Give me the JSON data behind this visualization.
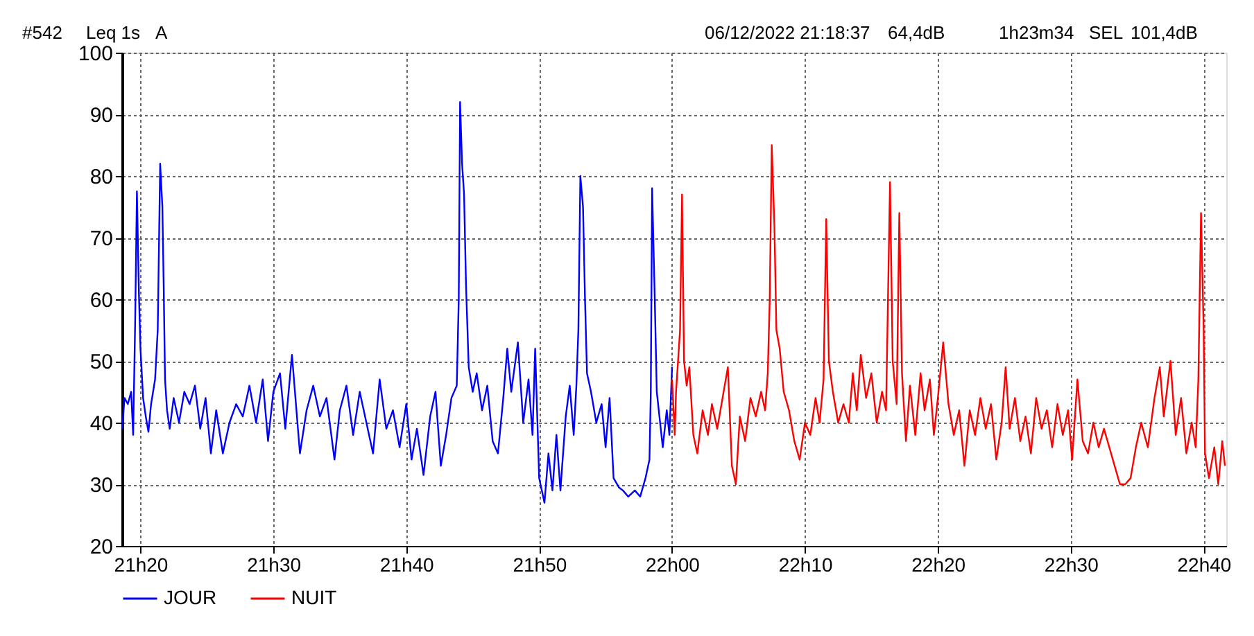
{
  "chart_data": {
    "type": "line",
    "annotations": [
      "#542",
      "Leq 1s",
      "A",
      "06/12/2022 21:18:37",
      "64,4dB",
      "1h23m34",
      "SEL",
      "101,4dB"
    ],
    "xlim": [
      "2022-12-06T21:18:37",
      "2022-12-06T22:41:42"
    ],
    "ylim": [
      20,
      100
    ],
    "xticks": [
      {
        "value": "2022-12-06T21:20",
        "label": "21h20"
      },
      {
        "value": "2022-12-06T21:30",
        "label": "21h30"
      },
      {
        "value": "2022-12-06T21:40",
        "label": "21h40"
      },
      {
        "value": "2022-12-06T21:50",
        "label": "21h50"
      },
      {
        "value": "2022-12-06T22:00",
        "label": "22h00"
      },
      {
        "value": "2022-12-06T22:10",
        "label": "22h10"
      },
      {
        "value": "2022-12-06T22:20",
        "label": "22h20"
      },
      {
        "value": "2022-12-06T22:30",
        "label": "22h30"
      },
      {
        "value": "2022-12-06T22:40",
        "label": "22h40"
      }
    ],
    "yticks": [
      20,
      30,
      40,
      50,
      60,
      70,
      80,
      90,
      100
    ],
    "grid": true,
    "legend": "bottom",
    "marker": "none",
    "line_style": "solid",
    "series": [
      {
        "name": "JOUR",
        "color": "#0000ff",
        "x": [
          "2022-12-06T21:18:38",
          "2022-12-06T21:18:48",
          "2022-12-06T21:19:03",
          "2022-12-06T21:19:18",
          "2022-12-06T21:19:27",
          "2022-12-06T21:19:36",
          "2022-12-06T21:19:44",
          "2022-12-06T21:19:53",
          "2022-12-06T21:20:00",
          "2022-12-06T21:20:12",
          "2022-12-06T21:20:24",
          "2022-12-06T21:20:36",
          "2022-12-06T21:20:48",
          "2022-12-06T21:21:06",
          "2022-12-06T21:21:18",
          "2022-12-06T21:21:29",
          "2022-12-06T21:21:39",
          "2022-12-06T21:21:45",
          "2022-12-06T21:21:51",
          "2022-12-06T21:22:00",
          "2022-12-06T21:22:12",
          "2022-12-06T21:22:30",
          "2022-12-06T21:22:54",
          "2022-12-06T21:23:18",
          "2022-12-06T21:23:42",
          "2022-12-06T21:24:06",
          "2022-12-06T21:24:30",
          "2022-12-06T21:24:54",
          "2022-12-06T21:25:18",
          "2022-12-06T21:25:42",
          "2022-12-06T21:26:12",
          "2022-12-06T21:26:42",
          "2022-12-06T21:27:12",
          "2022-12-06T21:27:42",
          "2022-12-06T21:28:12",
          "2022-12-06T21:28:42",
          "2022-12-06T21:29:12",
          "2022-12-06T21:29:36",
          "2022-12-06T21:30:00",
          "2022-12-06T21:30:30",
          "2022-12-06T21:30:54",
          "2022-12-06T21:31:24",
          "2022-12-06T21:31:42",
          "2022-12-06T21:32:00",
          "2022-12-06T21:32:30",
          "2022-12-06T21:33:00",
          "2022-12-06T21:33:30",
          "2022-12-06T21:34:00",
          "2022-12-06T21:34:36",
          "2022-12-06T21:35:00",
          "2022-12-06T21:35:30",
          "2022-12-06T21:36:00",
          "2022-12-06T21:36:30",
          "2022-12-06T21:37:00",
          "2022-12-06T21:37:30",
          "2022-12-06T21:38:00",
          "2022-12-06T21:38:30",
          "2022-12-06T21:39:00",
          "2022-12-06T21:39:30",
          "2022-12-06T21:40:00",
          "2022-12-06T21:40:24",
          "2022-12-06T21:40:48",
          "2022-12-06T21:41:18",
          "2022-12-06T21:41:48",
          "2022-12-06T21:42:12",
          "2022-12-06T21:42:36",
          "2022-12-06T21:43:00",
          "2022-12-06T21:43:24",
          "2022-12-06T21:43:48",
          "2022-12-06T21:43:57",
          "2022-12-06T21:44:03",
          "2022-12-06T21:44:12",
          "2022-12-06T21:44:21",
          "2022-12-06T21:44:30",
          "2022-12-06T21:44:42",
          "2022-12-06T21:45:00",
          "2022-12-06T21:45:18",
          "2022-12-06T21:45:42",
          "2022-12-06T21:46:06",
          "2022-12-06T21:46:30",
          "2022-12-06T21:46:54",
          "2022-12-06T21:47:18",
          "2022-12-06T21:47:36",
          "2022-12-06T21:47:54",
          "2022-12-06T21:48:24",
          "2022-12-06T21:48:48",
          "2022-12-06T21:49:12",
          "2022-12-06T21:49:30",
          "2022-12-06T21:49:42",
          "2022-12-06T21:50:00",
          "2022-12-06T21:50:24",
          "2022-12-06T21:50:42",
          "2022-12-06T21:51:00",
          "2022-12-06T21:51:18",
          "2022-12-06T21:51:36",
          "2022-12-06T21:52:00",
          "2022-12-06T21:52:18",
          "2022-12-06T21:52:36",
          "2022-12-06T21:52:48",
          "2022-12-06T21:52:57",
          "2022-12-06T21:53:06",
          "2022-12-06T21:53:18",
          "2022-12-06T21:53:27",
          "2022-12-06T21:53:36",
          "2022-12-06T21:53:54",
          "2022-12-06T21:54:18",
          "2022-12-06T21:54:42",
          "2022-12-06T21:55:00",
          "2022-12-06T21:55:18",
          "2022-12-06T21:55:36",
          "2022-12-06T21:56:00",
          "2022-12-06T21:56:18",
          "2022-12-06T21:56:42",
          "2022-12-06T21:57:12",
          "2022-12-06T21:57:36",
          "2022-12-06T21:58:00",
          "2022-12-06T21:58:18",
          "2022-12-06T21:58:24",
          "2022-12-06T21:58:30",
          "2022-12-06T21:58:42",
          "2022-12-06T21:58:51",
          "2022-12-06T21:59:06",
          "2022-12-06T21:59:18",
          "2022-12-06T21:59:36",
          "2022-12-06T21:59:48",
          "2022-12-06T22:00:00"
        ],
        "values": [
          39,
          44,
          43,
          45,
          38,
          56,
          77.5,
          61,
          52,
          44,
          41,
          38.5,
          43,
          47,
          55,
          82,
          75,
          62,
          47,
          42,
          39,
          44,
          40,
          45,
          43,
          46,
          39,
          44,
          35,
          42,
          35,
          40,
          43,
          41,
          46,
          40,
          47,
          37,
          45,
          48,
          39,
          51,
          43,
          35,
          42,
          46,
          41,
          44,
          34,
          42,
          46,
          38,
          45,
          40,
          35,
          47,
          39,
          42,
          36,
          43,
          34,
          39,
          31.5,
          41,
          45,
          33,
          38,
          44,
          46,
          60,
          92,
          82,
          77,
          62,
          49,
          45,
          48,
          42,
          46,
          37,
          35,
          44,
          52,
          45,
          53,
          40,
          47,
          38,
          52,
          31,
          27,
          35,
          29,
          38,
          29,
          41,
          46,
          38,
          46,
          55,
          80,
          75,
          60,
          48,
          45,
          40,
          43,
          36,
          44,
          31,
          29.5,
          29,
          28,
          29,
          28,
          31,
          34,
          45,
          78,
          60,
          45,
          40,
          36,
          42,
          38,
          49
        ]
      },
      {
        "name": "NUIT",
        "color": "#ff0000",
        "x": [
          "2022-12-06T22:00:00",
          "2022-12-06T22:00:12",
          "2022-12-06T22:00:18",
          "2022-12-06T22:00:36",
          "2022-12-06T22:00:45",
          "2022-12-06T22:00:54",
          "2022-12-06T22:01:06",
          "2022-12-06T22:01:18",
          "2022-12-06T22:01:36",
          "2022-12-06T22:01:54",
          "2022-12-06T22:02:18",
          "2022-12-06T22:02:42",
          "2022-12-06T22:03:00",
          "2022-12-06T22:03:24",
          "2022-12-06T22:03:48",
          "2022-12-06T22:04:12",
          "2022-12-06T22:04:30",
          "2022-12-06T22:04:48",
          "2022-12-06T22:05:06",
          "2022-12-06T22:05:30",
          "2022-12-06T22:05:54",
          "2022-12-06T22:06:18",
          "2022-12-06T22:06:42",
          "2022-12-06T22:07:00",
          "2022-12-06T22:07:12",
          "2022-12-06T22:07:21",
          "2022-12-06T22:07:30",
          "2022-12-06T22:07:42",
          "2022-12-06T22:07:51",
          "2022-12-06T22:08:06",
          "2022-12-06T22:08:24",
          "2022-12-06T22:08:48",
          "2022-12-06T22:09:12",
          "2022-12-06T22:09:36",
          "2022-12-06T22:10:00",
          "2022-12-06T22:10:24",
          "2022-12-06T22:10:48",
          "2022-12-06T22:11:06",
          "2022-12-06T22:11:24",
          "2022-12-06T22:11:36",
          "2022-12-06T22:11:48",
          "2022-12-06T22:12:06",
          "2022-12-06T22:12:30",
          "2022-12-06T22:12:54",
          "2022-12-06T22:13:18",
          "2022-12-06T22:13:36",
          "2022-12-06T22:13:54",
          "2022-12-06T22:14:12",
          "2022-12-06T22:14:36",
          "2022-12-06T22:15:00",
          "2022-12-06T22:15:24",
          "2022-12-06T22:15:48",
          "2022-12-06T22:16:06",
          "2022-12-06T22:16:24",
          "2022-12-06T22:16:36",
          "2022-12-06T22:16:54",
          "2022-12-06T22:17:06",
          "2022-12-06T22:17:18",
          "2022-12-06T22:17:36",
          "2022-12-06T22:17:54",
          "2022-12-06T22:18:18",
          "2022-12-06T22:18:42",
          "2022-12-06T22:19:00",
          "2022-12-06T22:19:24",
          "2022-12-06T22:19:42",
          "2022-12-06T22:20:00",
          "2022-12-06T22:20:24",
          "2022-12-06T22:20:48",
          "2022-12-06T22:21:12",
          "2022-12-06T22:21:36",
          "2022-12-06T22:22:00",
          "2022-12-06T22:22:24",
          "2022-12-06T22:22:48",
          "2022-12-06T22:23:12",
          "2022-12-06T22:23:36",
          "2022-12-06T22:24:00",
          "2022-12-06T22:24:24",
          "2022-12-06T22:24:48",
          "2022-12-06T22:25:06",
          "2022-12-06T22:25:24",
          "2022-12-06T22:25:48",
          "2022-12-06T22:26:12",
          "2022-12-06T22:26:36",
          "2022-12-06T22:27:00",
          "2022-12-06T22:27:24",
          "2022-12-06T22:27:48",
          "2022-12-06T22:28:12",
          "2022-12-06T22:28:36",
          "2022-12-06T22:29:00",
          "2022-12-06T22:29:24",
          "2022-12-06T22:29:48",
          "2022-12-06T22:30:06",
          "2022-12-06T22:30:30",
          "2022-12-06T22:30:54",
          "2022-12-06T22:31:18",
          "2022-12-06T22:31:42",
          "2022-12-06T22:32:06",
          "2022-12-06T22:32:30",
          "2022-12-06T22:32:54",
          "2022-12-06T22:33:18",
          "2022-12-06T22:33:42",
          "2022-12-06T22:34:06",
          "2022-12-06T22:34:30",
          "2022-12-06T22:34:54",
          "2022-12-06T22:35:18",
          "2022-12-06T22:35:48",
          "2022-12-06T22:36:18",
          "2022-12-06T22:36:42",
          "2022-12-06T22:37:00",
          "2022-12-06T22:37:30",
          "2022-12-06T22:37:54",
          "2022-12-06T22:38:18",
          "2022-12-06T22:38:42",
          "2022-12-06T22:39:06",
          "2022-12-06T22:39:24",
          "2022-12-06T22:39:36",
          "2022-12-06T22:39:48",
          "2022-12-06T22:40:00",
          "2022-12-06T22:40:06",
          "2022-12-06T22:40:24",
          "2022-12-06T22:40:48",
          "2022-12-06T22:41:06",
          "2022-12-06T22:41:24",
          "2022-12-06T22:41:36"
        ],
        "values": [
          47,
          38,
          45,
          55,
          77,
          50,
          46,
          49,
          38,
          35,
          42,
          38,
          43,
          39,
          44,
          49,
          33,
          30,
          41,
          37,
          44,
          41,
          45,
          42,
          48,
          60,
          85,
          72,
          55,
          52,
          45,
          42,
          37,
          34,
          40,
          38,
          44,
          40,
          47,
          73,
          50,
          45,
          40,
          43,
          40,
          48,
          42,
          51,
          44,
          48,
          40,
          45,
          42,
          79,
          50,
          43,
          74,
          48,
          37,
          46,
          38,
          48,
          42,
          47,
          38,
          44,
          53,
          43,
          38,
          42,
          33,
          42,
          38,
          44,
          39,
          43,
          34,
          40,
          49,
          39,
          44,
          37,
          41,
          35,
          44,
          39,
          42,
          36,
          43,
          38,
          42,
          34,
          47,
          37,
          35,
          40,
          36,
          39,
          36,
          33,
          30,
          30,
          31,
          36,
          40,
          36,
          44,
          49,
          41,
          50,
          38,
          44,
          35,
          40,
          36,
          47,
          74,
          55,
          35,
          31,
          36,
          30,
          37,
          33
        ]
      }
    ]
  }
}
